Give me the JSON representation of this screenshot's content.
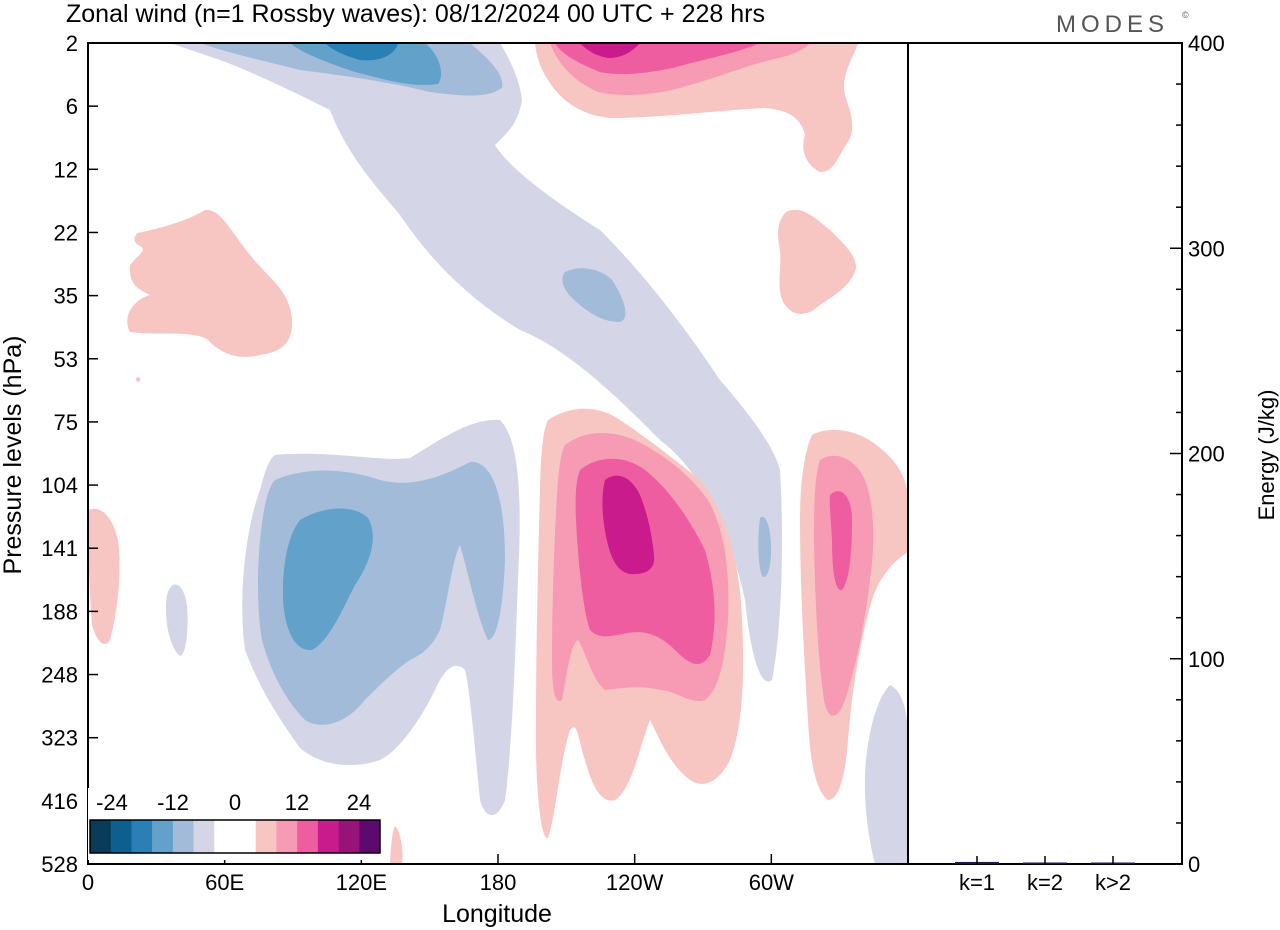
{
  "title": "Zonal wind (n=1 Rossby waves):  08/12/2024  00 UTC  + 228 hrs",
  "brand": "MODES",
  "brand_mark": "©",
  "colors": {
    "neg": [
      "#0b3b5a",
      "#0e5e8e",
      "#2a7fb4",
      "#62a2ca",
      "#a2bbd9",
      "#d4d6e8"
    ],
    "zero": "#ffffff",
    "pos": [
      "#f8c6c2",
      "#f79ab4",
      "#ee5da0",
      "#c91b8c",
      "#981378",
      "#5d0a6e"
    ],
    "axis": "#000000"
  },
  "chart_data": [
    {
      "type": "heatmap",
      "title": "Zonal wind (n=1 Rossby waves):  08/12/2024  00 UTC  + 228 hrs",
      "xlabel": "Longitude",
      "ylabel": "Pressure levels (hPa)",
      "x_ticks": [
        "0",
        "60E",
        "120E",
        "180",
        "120W",
        "60W"
      ],
      "x_tick_deg": [
        0,
        60,
        120,
        180,
        240,
        300
      ],
      "x_range_deg": [
        0,
        360
      ],
      "y_ticks": [
        "2",
        "6",
        "12",
        "22",
        "35",
        "53",
        "75",
        "104",
        "141",
        "188",
        "248",
        "323",
        "416",
        "528"
      ],
      "colorbar": {
        "labels": [
          "-24",
          "-12",
          "0",
          "12",
          "24"
        ],
        "label_values": [
          -24,
          -12,
          0,
          12,
          24
        ],
        "levels": [
          -28,
          -24,
          -20,
          -16,
          -12,
          -8,
          -4,
          4,
          8,
          12,
          16,
          20,
          24,
          28
        ]
      },
      "features": [
        {
          "sign": "neg",
          "peak": -20,
          "level_hPa": 2,
          "lon": 120
        },
        {
          "sign": "pos",
          "peak": 20,
          "level_hPa": 2,
          "lon": 225
        },
        {
          "sign": "neg",
          "peak": -12,
          "level_hPa": 35,
          "lon": 220
        },
        {
          "sign": "pos",
          "peak": 4,
          "level_hPa": 35,
          "lon": 80
        },
        {
          "sign": "pos",
          "peak": 4,
          "level_hPa": 35,
          "lon": 325
        },
        {
          "sign": "neg",
          "peak": -20,
          "level_hPa": 160,
          "lon": 100
        },
        {
          "sign": "pos",
          "peak": 20,
          "level_hPa": 141,
          "lon": 235
        },
        {
          "sign": "pos",
          "peak": 16,
          "level_hPa": 141,
          "lon": 335
        },
        {
          "sign": "neg",
          "peak": -12,
          "level_hPa": 141,
          "lon": 297
        }
      ]
    },
    {
      "type": "bar",
      "ylabel": "Energy (J/kg)",
      "categories": [
        "k=1",
        "k=2",
        "k>2"
      ],
      "values": [
        1.0,
        0.6,
        0.6
      ],
      "ylim": [
        0,
        400
      ],
      "y_ticks": [
        0,
        100,
        200,
        300,
        400
      ]
    }
  ]
}
